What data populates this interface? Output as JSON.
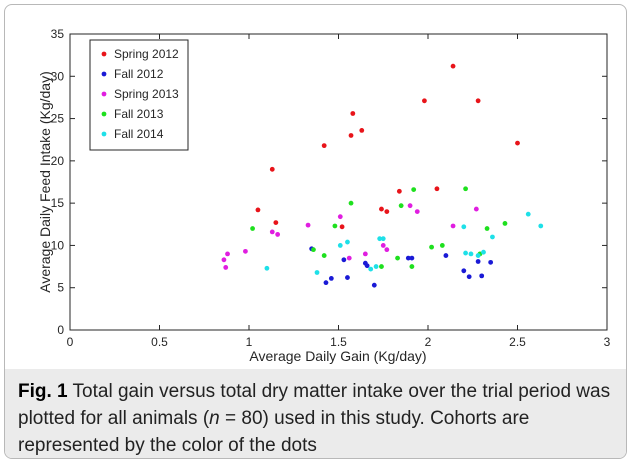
{
  "figure": {
    "label": "Fig. 1",
    "caption_part1": " Total gain versus total dry matter intake over the trial period was plotted for all animals (",
    "caption_n_var": "n",
    "caption_n_value": " = 80)",
    "caption_part2": " used in this study. Cohorts are represented by the color of the dots"
  },
  "chart_data": {
    "type": "scatter",
    "title": "",
    "xlabel": "Average Daily Gain (Kg/day)",
    "ylabel": "Average Daily Feed Intake (Kg/day)",
    "xlim": [
      0,
      3
    ],
    "ylim": [
      0,
      35
    ],
    "x_ticks": [
      "0",
      "0.5",
      "1",
      "1.5",
      "2",
      "2.5",
      "3"
    ],
    "y_ticks": [
      "0",
      "5",
      "10",
      "15",
      "20",
      "25",
      "30",
      "35"
    ],
    "grid": false,
    "legend_position": "top-left",
    "series": [
      {
        "name": "Spring 2012",
        "color": "#e8141a",
        "points": [
          [
            1.05,
            14.2
          ],
          [
            1.13,
            19.0
          ],
          [
            1.15,
            12.7
          ],
          [
            1.42,
            21.8
          ],
          [
            1.52,
            12.2
          ],
          [
            1.57,
            23.0
          ],
          [
            1.58,
            25.6
          ],
          [
            1.63,
            23.6
          ],
          [
            1.74,
            14.3
          ],
          [
            1.77,
            14.0
          ],
          [
            1.84,
            16.4
          ],
          [
            1.98,
            27.1
          ],
          [
            2.05,
            16.7
          ],
          [
            2.14,
            31.2
          ],
          [
            2.28,
            27.1
          ],
          [
            2.5,
            22.1
          ]
        ]
      },
      {
        "name": "Fall 2012",
        "color": "#1a1ad6",
        "points": [
          [
            1.35,
            9.6
          ],
          [
            1.43,
            5.6
          ],
          [
            1.46,
            6.1
          ],
          [
            1.53,
            8.3
          ],
          [
            1.55,
            6.2
          ],
          [
            1.65,
            7.9
          ],
          [
            1.66,
            7.6
          ],
          [
            1.7,
            5.3
          ],
          [
            1.89,
            8.5
          ],
          [
            1.91,
            8.5
          ],
          [
            2.1,
            8.8
          ],
          [
            2.2,
            7.0
          ],
          [
            2.23,
            6.3
          ],
          [
            2.28,
            8.1
          ],
          [
            2.3,
            6.4
          ],
          [
            2.35,
            8.0
          ]
        ]
      },
      {
        "name": "Spring 2013",
        "color": "#e01ee0",
        "points": [
          [
            0.86,
            8.3
          ],
          [
            0.87,
            7.4
          ],
          [
            0.88,
            9.0
          ],
          [
            0.98,
            9.3
          ],
          [
            1.13,
            11.6
          ],
          [
            1.16,
            11.3
          ],
          [
            1.33,
            12.4
          ],
          [
            1.51,
            13.4
          ],
          [
            1.56,
            8.5
          ],
          [
            1.65,
            9.0
          ],
          [
            1.75,
            10.0
          ],
          [
            1.77,
            9.5
          ],
          [
            1.9,
            14.7
          ],
          [
            1.94,
            14.0
          ],
          [
            2.14,
            12.3
          ],
          [
            2.27,
            14.3
          ]
        ]
      },
      {
        "name": "Fall 2013",
        "color": "#1ee01e",
        "points": [
          [
            1.02,
            12.0
          ],
          [
            1.36,
            9.5
          ],
          [
            1.42,
            8.8
          ],
          [
            1.48,
            12.3
          ],
          [
            1.57,
            15.0
          ],
          [
            1.74,
            7.5
          ],
          [
            1.83,
            8.5
          ],
          [
            1.85,
            14.7
          ],
          [
            1.91,
            7.5
          ],
          [
            1.92,
            16.6
          ],
          [
            2.02,
            9.8
          ],
          [
            2.08,
            10.0
          ],
          [
            2.21,
            16.7
          ],
          [
            2.29,
            9.0
          ],
          [
            2.33,
            12.0
          ],
          [
            2.43,
            12.6
          ]
        ]
      },
      {
        "name": "Fall 2014",
        "color": "#1ee0e8",
        "points": [
          [
            1.1,
            7.3
          ],
          [
            1.38,
            6.8
          ],
          [
            1.51,
            10.0
          ],
          [
            1.55,
            10.4
          ],
          [
            1.68,
            7.2
          ],
          [
            1.71,
            7.5
          ],
          [
            1.73,
            10.8
          ],
          [
            1.75,
            10.8
          ],
          [
            2.2,
            12.2
          ],
          [
            2.21,
            9.1
          ],
          [
            2.24,
            9.0
          ],
          [
            2.28,
            8.8
          ],
          [
            2.31,
            9.2
          ],
          [
            2.36,
            11.0
          ],
          [
            2.56,
            13.7
          ],
          [
            2.63,
            12.3
          ]
        ]
      }
    ]
  }
}
